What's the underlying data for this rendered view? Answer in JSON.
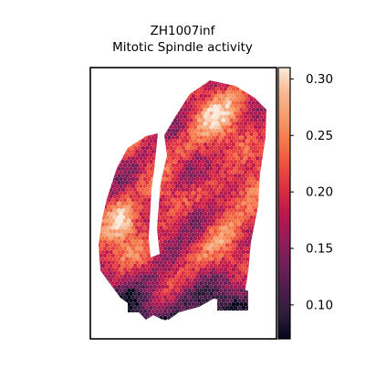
{
  "chart_data": {
    "type": "heatmap",
    "title_line1": "ZH1007inf",
    "title_line2": "Mitotic Spindle activity",
    "xlabel": "",
    "ylabel": "",
    "grid": false,
    "colormap": "rocket",
    "colorbar": {
      "location": "right",
      "vmin": 0.07,
      "vmax": 0.31,
      "ticks": [
        0.1,
        0.15,
        0.2,
        0.25,
        0.3
      ],
      "tick_labels": [
        "0.10",
        "0.15",
        "0.20",
        "0.25",
        "0.30"
      ]
    },
    "spot_value_range": [
      0.07,
      0.31
    ],
    "colors": {
      "frame": "#000000",
      "background": "#ffffff",
      "cmap_stops": [
        "#03051a",
        "#2e1e3b",
        "#4c1d4b",
        "#701f57",
        "#941c5a",
        "#b8174f",
        "#d72c43",
        "#ec4e3f",
        "#f47848",
        "#f79b6c",
        "#f6b992",
        "#faebdd"
      ]
    }
  }
}
